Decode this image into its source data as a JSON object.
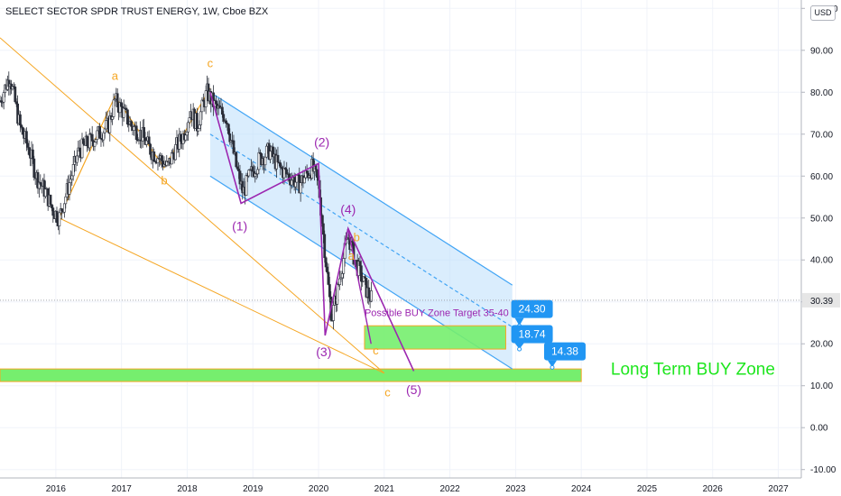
{
  "chart_data": {
    "type": "candlestick",
    "title": "SELECT SECTOR SPDR TRUST ENERGY, 1W, Cboe BZX",
    "currency_label": "USD",
    "y_ticks": [
      "100.00",
      "90.00",
      "80.00",
      "70.00",
      "60.00",
      "50.00",
      "40.00",
      "30.00",
      "20.00",
      "10.00",
      "0.00",
      "-10.00"
    ],
    "y_tick_values": [
      100,
      90,
      80,
      70,
      60,
      50,
      40,
      30,
      20,
      10,
      0,
      -10
    ],
    "x_ticks": [
      "2016",
      "2017",
      "2018",
      "2019",
      "2020",
      "2021",
      "2022",
      "2023",
      "2024",
      "2025",
      "2026",
      "2027"
    ],
    "x_tick_values": [
      2016,
      2017,
      2018,
      2019,
      2020,
      2021,
      2022,
      2023,
      2024,
      2025,
      2026,
      2027
    ],
    "ylim": [
      -12,
      102
    ],
    "xlim": [
      2015.15,
      2027.35
    ],
    "last_price": "30.39",
    "last_price_value": 30.39,
    "price_path": [
      [
        2015.15,
        78
      ],
      [
        2015.3,
        84
      ],
      [
        2015.45,
        72
      ],
      [
        2015.6,
        66
      ],
      [
        2015.7,
        60
      ],
      [
        2015.85,
        56
      ],
      [
        2015.95,
        52
      ],
      [
        2016.05,
        50
      ],
      [
        2016.2,
        58
      ],
      [
        2016.35,
        66
      ],
      [
        2016.5,
        68
      ],
      [
        2016.65,
        70
      ],
      [
        2016.8,
        72
      ],
      [
        2016.9,
        78
      ],
      [
        2017.0,
        76
      ],
      [
        2017.15,
        72
      ],
      [
        2017.3,
        70
      ],
      [
        2017.45,
        66
      ],
      [
        2017.6,
        64
      ],
      [
        2017.7,
        62
      ],
      [
        2017.8,
        66
      ],
      [
        2017.95,
        70
      ],
      [
        2018.05,
        76
      ],
      [
        2018.15,
        72
      ],
      [
        2018.3,
        80
      ],
      [
        2018.45,
        76
      ],
      [
        2018.6,
        74
      ],
      [
        2018.75,
        62
      ],
      [
        2018.85,
        56
      ],
      [
        2018.95,
        60
      ],
      [
        2019.1,
        64
      ],
      [
        2019.25,
        66
      ],
      [
        2019.4,
        62
      ],
      [
        2019.55,
        60
      ],
      [
        2019.7,
        58
      ],
      [
        2019.8,
        60
      ],
      [
        2019.9,
        62
      ],
      [
        2020.0,
        58
      ],
      [
        2020.05,
        50
      ],
      [
        2020.12,
        38
      ],
      [
        2020.2,
        26
      ],
      [
        2020.3,
        34
      ],
      [
        2020.45,
        46
      ],
      [
        2020.55,
        40
      ],
      [
        2020.65,
        36
      ],
      [
        2020.75,
        32
      ],
      [
        2020.82,
        30.39
      ]
    ],
    "channel": {
      "upper": [
        [
          2018.35,
          80
        ],
        [
          2022.95,
          34
        ]
      ],
      "lower": [
        [
          2018.35,
          60
        ],
        [
          2022.95,
          14
        ]
      ],
      "mid": [
        [
          2018.35,
          70
        ],
        [
          2022.95,
          24
        ]
      ]
    },
    "outer_wedge": {
      "upper": [
        [
          2015.15,
          93
        ],
        [
          2021.0,
          13
        ]
      ],
      "lower": [
        [
          2016.05,
          50
        ],
        [
          2021.0,
          13
        ]
      ]
    },
    "orange_wave": [
      [
        2016.05,
        50
      ],
      [
        2016.9,
        79
      ],
      [
        2017.65,
        62
      ],
      [
        2018.35,
        81
      ]
    ],
    "purple_wave": [
      [
        2018.35,
        80
      ],
      [
        2018.82,
        53.5
      ],
      [
        2020.0,
        63
      ],
      [
        2020.1,
        22
      ],
      [
        2020.45,
        47.5
      ],
      [
        2021.45,
        13.5
      ]
    ],
    "purple_minor": [
      [
        2020.45,
        47.5
      ],
      [
        2020.8,
        20
      ]
    ],
    "wave_labels": [
      {
        "text": "a",
        "x": 2016.9,
        "y": 83,
        "color": "#f5a623"
      },
      {
        "text": "b",
        "x": 2017.65,
        "y": 58,
        "color": "#f5a623"
      },
      {
        "text": "c",
        "x": 2018.35,
        "y": 86,
        "color": "#f5a623"
      },
      {
        "text": "c",
        "x": 2021.05,
        "y": 7.5,
        "color": "#f5a623"
      },
      {
        "text": "a",
        "x": 2020.5,
        "y": 40,
        "color": "#f5a623"
      },
      {
        "text": "b",
        "x": 2020.58,
        "y": 44.5,
        "color": "#f5a623"
      },
      {
        "text": "c",
        "x": 2020.87,
        "y": 17.5,
        "color": "#f5a623"
      },
      {
        "text": "(1)",
        "x": 2018.8,
        "y": 47,
        "color": "#9c27b0"
      },
      {
        "text": "(2)",
        "x": 2020.05,
        "y": 67,
        "color": "#9c27b0"
      },
      {
        "text": "(3)",
        "x": 2020.08,
        "y": 17,
        "color": "#9c27b0"
      },
      {
        "text": "(4)",
        "x": 2020.45,
        "y": 51,
        "color": "#9c27b0"
      },
      {
        "text": "(5)",
        "x": 2021.45,
        "y": 8,
        "color": "#9c27b0"
      }
    ],
    "buy_zone_short": {
      "x1": 2020.7,
      "x2": 2022.85,
      "y1": 24.3,
      "y2": 18.74
    },
    "buy_zone_long": {
      "x1": 2015.15,
      "x2": 2024.0,
      "y1": 14.0,
      "y2": 11.0
    },
    "buy_zone_note": "Possible BUY Zone Target 35-40",
    "buy_zone_note_anchor": [
      2020.7,
      26.6
    ],
    "long_term_label": "Long Term BUY Zone",
    "long_term_label_anchor": [
      2025.7,
      12.6
    ],
    "price_tags": [
      {
        "text": "24.30",
        "value": 24.3,
        "x": 2023.25,
        "y": 28.3
      },
      {
        "text": "18.74",
        "value": 18.74,
        "x": 2023.25,
        "y": 22.3
      },
      {
        "text": "14.38",
        "value": 14.38,
        "x": 2023.75,
        "y": 18.2
      }
    ],
    "colors": {
      "bull": "#26a69a",
      "bear": "#ef5350",
      "candle": "#2a2e39",
      "channel_fill": "#bbdefb",
      "channel_line": "#42a5f5",
      "wedge": "#f5a623",
      "purple": "#9c27b0",
      "buy_zone": "#76ee6e",
      "tag": "#2196f3",
      "label_green": "#1ee61e"
    }
  }
}
